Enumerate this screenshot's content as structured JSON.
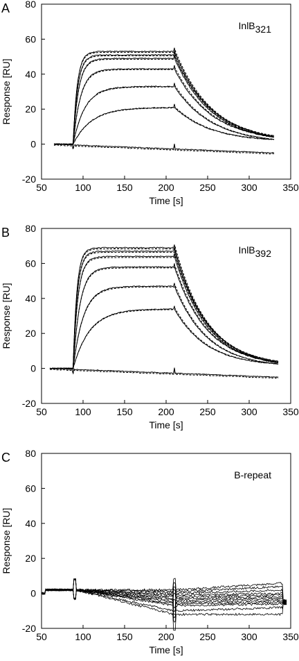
{
  "chart_data": [
    {
      "type": "line",
      "panel": "A",
      "annotation": "InlB",
      "annotation_sub": "321",
      "xlabel": "Time [s]",
      "ylabel": "Response [RU]",
      "xlim": [
        50,
        350
      ],
      "ylim": [
        -20,
        80
      ],
      "xticks": [
        50,
        100,
        150,
        200,
        250,
        300,
        350
      ],
      "yticks": [
        -20,
        0,
        20,
        40,
        60,
        80
      ],
      "grid": false,
      "curves": {
        "x_start": 65,
        "x_inject": 88,
        "x_stop": 210,
        "x_end": 330,
        "plateaus": [
          53,
          51,
          49,
          43,
          33,
          21
        ],
        "k_on": [
          0.2,
          0.18,
          0.15,
          0.11,
          0.07,
          0.045
        ],
        "k_off": 0.022,
        "baseline": {
          "start": 0,
          "end": -5
        }
      }
    },
    {
      "type": "line",
      "panel": "B",
      "annotation": "InlB",
      "annotation_sub": "392",
      "xlabel": "Time [s]",
      "ylabel": "Response [RU]",
      "xlim": [
        50,
        350
      ],
      "ylim": [
        -20,
        80
      ],
      "xticks": [
        50,
        100,
        150,
        200,
        250,
        300,
        350
      ],
      "yticks": [
        -20,
        0,
        20,
        40,
        60,
        80
      ],
      "grid": false,
      "curves": {
        "x_start": 60,
        "x_inject": 88,
        "x_stop": 210,
        "x_end": 335,
        "plateaus": [
          69,
          67,
          64,
          58,
          47,
          34
        ],
        "k_on": [
          0.22,
          0.2,
          0.17,
          0.12,
          0.08,
          0.05
        ],
        "k_off": 0.025,
        "baseline": {
          "start": 0,
          "end": -5
        }
      }
    },
    {
      "type": "line",
      "panel": "C",
      "annotation": "B-repeat",
      "annotation_sub": "",
      "xlabel": "Time [s]",
      "ylabel": "Response [RU]",
      "xlim": [
        50,
        350
      ],
      "ylim": [
        -20,
        80
      ],
      "xticks": [
        50,
        100,
        150,
        200,
        250,
        300,
        350
      ],
      "yticks": [
        -20,
        0,
        20,
        40,
        60,
        80
      ],
      "grid": false,
      "noise_traces": {
        "x_start": 50,
        "x_inject": 90,
        "x_stop": 210,
        "x_end": 345,
        "start_level": 2,
        "end_levels": [
          6,
          4,
          2,
          0,
          -1,
          -2,
          -3,
          -4,
          -5,
          -6,
          -8,
          -12
        ],
        "mid_levels": [
          2,
          1,
          0,
          -1,
          -2,
          -3,
          -4,
          -5,
          -6,
          -7,
          -10,
          -12
        ]
      }
    }
  ]
}
